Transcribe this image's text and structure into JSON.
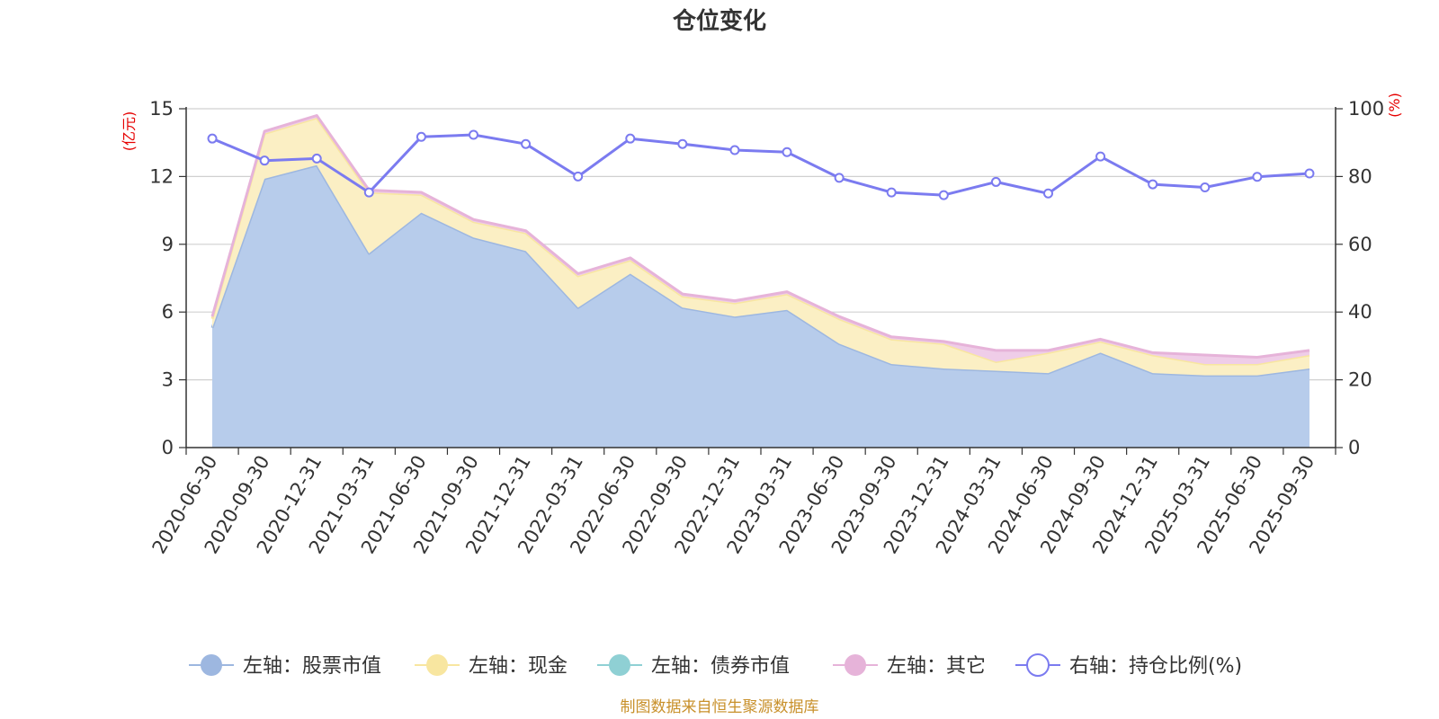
{
  "chart_data": {
    "type": "area",
    "title": "仓位变化",
    "source": "制图数据来自恒生聚源数据库",
    "left_axis": {
      "unit": "(亿元)",
      "min": 0,
      "max": 15,
      "ticks": [
        "0",
        "3",
        "6",
        "9",
        "12",
        "15"
      ]
    },
    "right_axis": {
      "unit": "(%)",
      "min": 0,
      "max": 100,
      "ticks": [
        "0",
        "20",
        "40",
        "60",
        "80",
        "100"
      ]
    },
    "categories": [
      "2020-06-30",
      "2020-09-30",
      "2020-12-31",
      "2021-03-31",
      "2021-06-30",
      "2021-09-30",
      "2021-12-31",
      "2022-03-31",
      "2022-06-30",
      "2022-09-30",
      "2022-12-31",
      "2023-03-31",
      "2023-06-30",
      "2023-09-30",
      "2023-12-31",
      "2024-03-31",
      "2024-06-30",
      "2024-09-30",
      "2024-12-31",
      "2025-03-31",
      "2025-06-30",
      "2025-09-30"
    ],
    "series": [
      {
        "name": "左轴：股票市值",
        "axis": "left",
        "color": "#9db7e0",
        "fill": "#b7cceb",
        "values": [
          5.3,
          11.9,
          12.5,
          8.6,
          10.4,
          9.3,
          8.7,
          6.2,
          7.7,
          6.2,
          5.8,
          6.1,
          4.6,
          3.7,
          3.5,
          3.4,
          3.3,
          4.2,
          3.3,
          3.2,
          3.2,
          3.5
        ]
      },
      {
        "name": "左轴：现金",
        "axis": "left",
        "color": "#f8e6a0",
        "fill": "#fbefc4",
        "values": [
          0.4,
          2.0,
          2.1,
          2.7,
          0.8,
          0.7,
          0.8,
          1.4,
          0.6,
          0.5,
          0.6,
          0.7,
          1.1,
          1.1,
          1.1,
          0.4,
          0.9,
          0.5,
          0.8,
          0.5,
          0.5,
          0.6
        ]
      },
      {
        "name": "左轴：债券市值",
        "axis": "left",
        "color": "#8fd0d4",
        "fill": "#bfe6e8",
        "values": [
          0,
          0,
          0,
          0,
          0,
          0,
          0,
          0,
          0,
          0,
          0,
          0,
          0,
          0,
          0,
          0,
          0,
          0,
          0,
          0,
          0,
          0
        ]
      },
      {
        "name": "左轴：其它",
        "axis": "left",
        "color": "#e6b3d9",
        "fill": "#efcde8",
        "values": [
          0.1,
          0.1,
          0.1,
          0.1,
          0.1,
          0.1,
          0.1,
          0.1,
          0.1,
          0.1,
          0.1,
          0.1,
          0.1,
          0.1,
          0.1,
          0.5,
          0.1,
          0.1,
          0.1,
          0.4,
          0.3,
          0.2
        ]
      },
      {
        "name": "右轴：持仓比例(%)",
        "axis": "right",
        "color": "#7b7bf0",
        "values": [
          91.2,
          84.7,
          85.3,
          75.3,
          91.7,
          92.3,
          89.6,
          80.0,
          91.2,
          89.6,
          87.8,
          87.2,
          79.6,
          75.3,
          74.5,
          78.4,
          75.0,
          85.9,
          77.7,
          76.8,
          79.9,
          80.9
        ]
      }
    ]
  }
}
